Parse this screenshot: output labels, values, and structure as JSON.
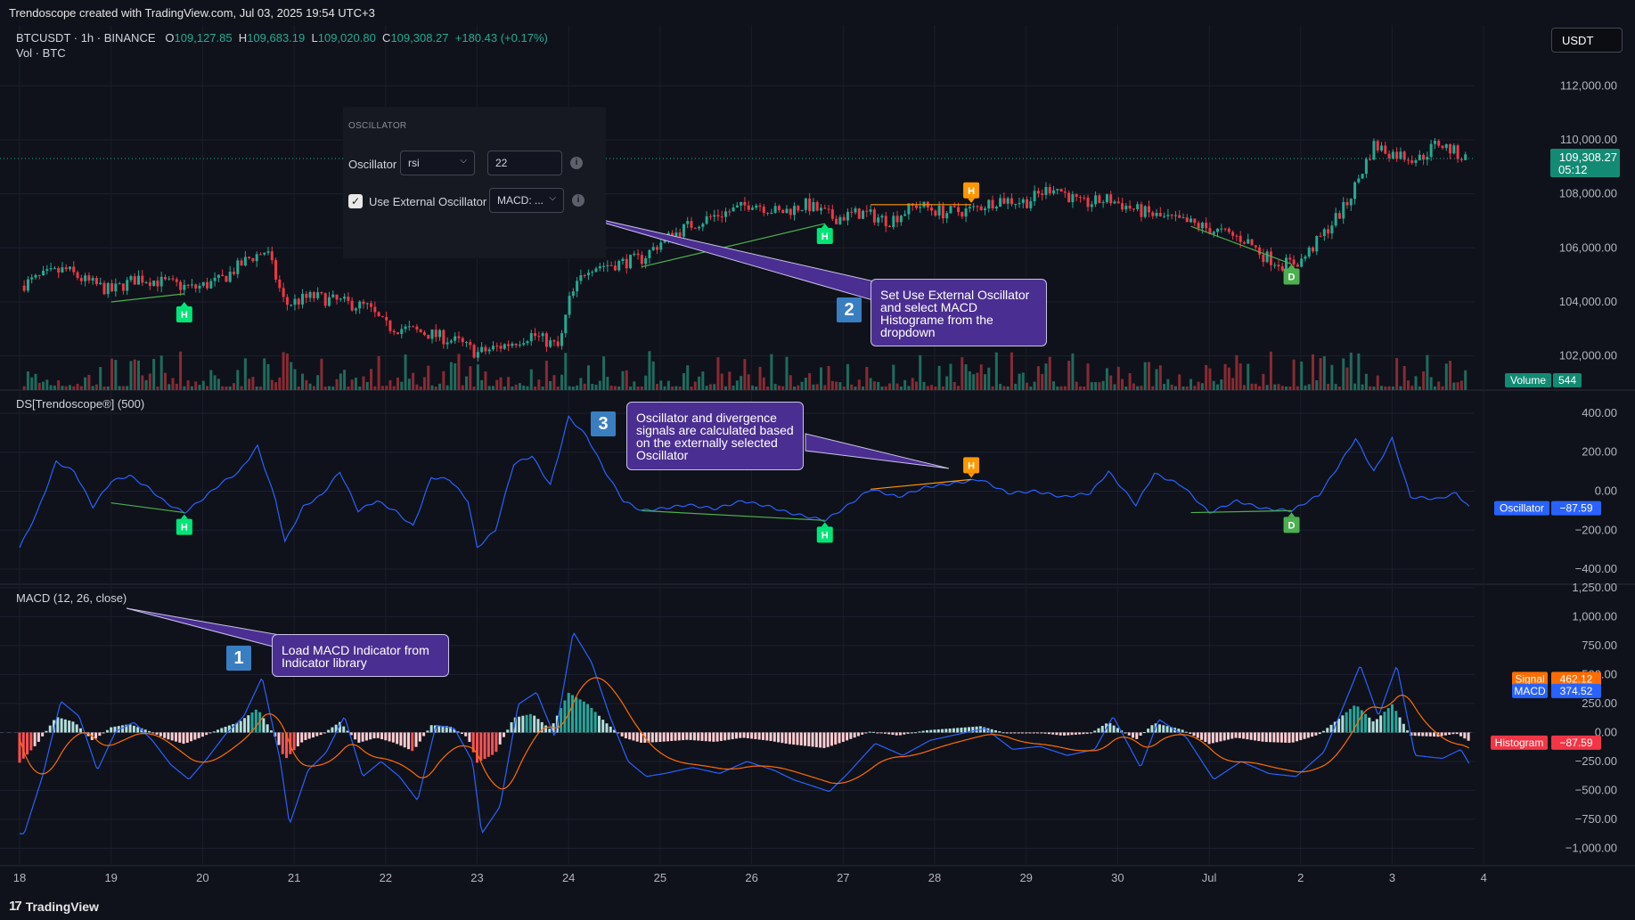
{
  "header": {
    "title": "Trendoscope created with TradingView.com, Jul 03, 2025 19:54 UTC+3"
  },
  "footer": {
    "brand": "TradingView",
    "logo_icon": "tradingview-logo-icon"
  },
  "colors": {
    "background": "#0f121a",
    "up": "#22ab94",
    "down": "#f23645",
    "oscillator": "#2962ff",
    "signal": "#ff6d00",
    "macd": "#2962ff",
    "pivot_high": "#00e676",
    "pivot_bearish": "#ff9800",
    "divergence": "#4caf50",
    "callout": "#4b2e91"
  },
  "legend": {
    "symbol": "BTCUSDT · 1h · BINANCE",
    "o_label": "O",
    "o": "109,127.85",
    "h_label": "H",
    "h": "109,683.19",
    "l_label": "L",
    "l": "109,020.80",
    "c_label": "C",
    "c": "109,308.27",
    "change": "+180.43 (+0.17%)",
    "vol": "Vol · BTC"
  },
  "currency_button": "USDT",
  "settings_panel": {
    "group_title": "OSCILLATOR",
    "oscillator_label": "Oscillator",
    "oscillator_value": "rsi",
    "length_value": "22",
    "use_external_label": "Use External Oscillator",
    "use_external_checked": true,
    "external_value": "MACD: ..."
  },
  "callouts": {
    "c1": {
      "step": "1",
      "text": "Load MACD Indicator from Indicator library"
    },
    "c2": {
      "step": "2",
      "text": "Set Use External Oscillator and select MACD Histograme from the dropdown"
    },
    "c3": {
      "step": "3",
      "text": "Oscillator and divergence signals are calculated based on the externally selected Oscillator"
    }
  },
  "chart_data": [
    {
      "type": "candlestick",
      "title": "BTCUSDT · 1h · BINANCE",
      "x_tick_labels": [
        "18",
        "19",
        "20",
        "21",
        "22",
        "23",
        "24",
        "25",
        "26",
        "27",
        "28",
        "29",
        "30",
        "Jul",
        "2",
        "3",
        "4"
      ],
      "y_tick_labels": [
        "112,000.00",
        "110,000.00",
        "108,000.00",
        "106,000.00",
        "104,000.00",
        "102,000.00"
      ],
      "ylim": [
        101000,
        113000
      ],
      "last_price": "109,308.27",
      "countdown": "05:12",
      "volume_label": "Volume",
      "volume_value": "544",
      "close_path": [
        [
          0,
          104600
        ],
        [
          0.3,
          105000
        ],
        [
          0.5,
          105200
        ],
        [
          0.7,
          104800
        ],
        [
          1,
          104400
        ],
        [
          1.3,
          104900
        ],
        [
          1.6,
          104700
        ],
        [
          1.9,
          104500
        ],
        [
          2.2,
          104800
        ],
        [
          2.5,
          105600
        ],
        [
          2.7,
          105900
        ],
        [
          2.9,
          103900
        ],
        [
          3.2,
          104200
        ],
        [
          3.5,
          104000
        ],
        [
          3.8,
          103800
        ],
        [
          4,
          103100
        ],
        [
          4.2,
          103000
        ],
        [
          4.5,
          102800
        ],
        [
          4.8,
          102500
        ],
        [
          5,
          102100
        ],
        [
          5.3,
          102400
        ],
        [
          5.6,
          102800
        ],
        [
          5.9,
          102300
        ],
        [
          6,
          104000
        ],
        [
          6.2,
          105300
        ],
        [
          6.5,
          105400
        ],
        [
          6.8,
          105600
        ],
        [
          7,
          106200
        ],
        [
          7.3,
          106800
        ],
        [
          7.6,
          107200
        ],
        [
          7.9,
          107500
        ],
        [
          8,
          107700
        ],
        [
          8.3,
          107300
        ],
        [
          8.6,
          107600
        ],
        [
          8.9,
          107100
        ],
        [
          9.2,
          107300
        ],
        [
          9.5,
          107000
        ],
        [
          9.8,
          107600
        ],
        [
          10.1,
          107300
        ],
        [
          10.4,
          107400
        ],
        [
          10.7,
          107800
        ],
        [
          11,
          107700
        ],
        [
          11.3,
          108300
        ],
        [
          11.6,
          107600
        ],
        [
          11.9,
          107800
        ],
        [
          12.2,
          107400
        ],
        [
          12.5,
          107100
        ],
        [
          12.8,
          106900
        ],
        [
          13.1,
          106600
        ],
        [
          13.4,
          106300
        ],
        [
          13.6,
          105700
        ],
        [
          13.8,
          105400
        ],
        [
          14,
          105500
        ],
        [
          14.2,
          106300
        ],
        [
          14.5,
          107600
        ],
        [
          14.8,
          109800
        ],
        [
          15,
          109500
        ],
        [
          15.3,
          109300
        ],
        [
          15.5,
          109900
        ],
        [
          15.8,
          109308
        ]
      ],
      "volume_series": "per-candle bars",
      "divergence_labels": [
        {
          "label": "H",
          "x": 1.8
        },
        {
          "label": "H",
          "x": 8.8
        },
        {
          "label": "H",
          "x": 10.4
        },
        {
          "label": "D",
          "x": 13.9
        }
      ]
    },
    {
      "type": "line",
      "title": "DS[Trendoscope®] (500)",
      "y_tick_labels": [
        "400.00",
        "200.00",
        "0.00",
        "−200.00",
        "−400.00"
      ],
      "ylim": [
        -450,
        450
      ],
      "series": [
        {
          "name": "Oscillator",
          "last_value": "−87.59",
          "points": [
            [
              0,
              -290
            ],
            [
              0.2,
              -100
            ],
            [
              0.4,
              150
            ],
            [
              0.6,
              100
            ],
            [
              0.8,
              -80
            ],
            [
              1,
              50
            ],
            [
              1.2,
              80
            ],
            [
              1.4,
              20
            ],
            [
              1.6,
              -60
            ],
            [
              1.8,
              -110
            ],
            [
              2,
              -40
            ],
            [
              2.2,
              40
            ],
            [
              2.4,
              100
            ],
            [
              2.6,
              230
            ],
            [
              2.8,
              -50
            ],
            [
              2.9,
              -260
            ],
            [
              3.1,
              -80
            ],
            [
              3.3,
              -20
            ],
            [
              3.5,
              100
            ],
            [
              3.7,
              -100
            ],
            [
              3.9,
              -50
            ],
            [
              4.1,
              -100
            ],
            [
              4.3,
              -180
            ],
            [
              4.5,
              70
            ],
            [
              4.7,
              60
            ],
            [
              4.9,
              -50
            ],
            [
              5,
              -290
            ],
            [
              5.2,
              -200
            ],
            [
              5.4,
              140
            ],
            [
              5.6,
              180
            ],
            [
              5.8,
              30
            ],
            [
              6,
              380
            ],
            [
              6.2,
              280
            ],
            [
              6.4,
              100
            ],
            [
              6.6,
              -50
            ],
            [
              6.8,
              -100
            ],
            [
              7,
              -90
            ],
            [
              7.3,
              -70
            ],
            [
              7.6,
              -90
            ],
            [
              7.9,
              -50
            ],
            [
              8.2,
              -80
            ],
            [
              8.4,
              -110
            ],
            [
              8.6,
              -130
            ],
            [
              8.8,
              -150
            ],
            [
              9,
              -90
            ],
            [
              9.3,
              10
            ],
            [
              9.6,
              -30
            ],
            [
              9.9,
              20
            ],
            [
              10.2,
              40
            ],
            [
              10.5,
              60
            ],
            [
              10.8,
              -10
            ],
            [
              11.1,
              0
            ],
            [
              11.4,
              -30
            ],
            [
              11.7,
              -10
            ],
            [
              11.9,
              100
            ],
            [
              12.2,
              -70
            ],
            [
              12.4,
              90
            ],
            [
              12.7,
              30
            ],
            [
              13,
              -110
            ],
            [
              13.3,
              -50
            ],
            [
              13.6,
              -90
            ],
            [
              13.9,
              -100
            ],
            [
              14.2,
              -20
            ],
            [
              14.4,
              120
            ],
            [
              14.6,
              270
            ],
            [
              14.8,
              100
            ],
            [
              15,
              270
            ],
            [
              15.2,
              -30
            ],
            [
              15.5,
              -40
            ],
            [
              15.7,
              -10
            ],
            [
              15.85,
              -88
            ]
          ]
        }
      ]
    },
    {
      "type": "line",
      "title": "MACD (12, 26, close)",
      "y_tick_labels": [
        "1,250.00",
        "1,000.00",
        "750.00",
        "500.00",
        "250.00",
        "0.00",
        "−250.00",
        "−500.00",
        "−750.00",
        "−1,000.00"
      ],
      "ylim": [
        -1150,
        1280
      ],
      "series": [
        {
          "name": "Signal",
          "last_value": "462.12"
        },
        {
          "name": "MACD",
          "last_value": "374.52"
        },
        {
          "name": "Histogram",
          "last_value": "−87.59"
        }
      ]
    }
  ]
}
